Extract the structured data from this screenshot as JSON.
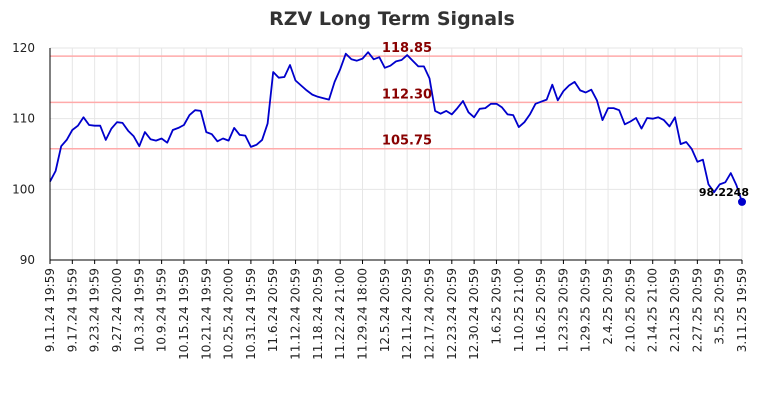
{
  "chart_data": {
    "type": "line",
    "title": "RZV Long Term Signals",
    "xlabel": "",
    "ylabel": "",
    "ylim": [
      90,
      120
    ],
    "yticks": [
      90,
      100,
      110,
      120
    ],
    "grid": true,
    "xtick_labels": [
      "9.11.24 19:59",
      "9.17.24 19:59",
      "9.23.24 19:59",
      "9.27.24 20:00",
      "10.3.24 19:59",
      "10.9.24 19:59",
      "10.15.24 19:59",
      "10.21.24 19:59",
      "10.25.24 20:00",
      "10.31.24 19:59",
      "11.6.24 20:59",
      "11.12.24 20:59",
      "11.18.24 20:59",
      "11.22.24 21:00",
      "11.29.24 18:00",
      "12.5.24 20:59",
      "12.11.24 20:59",
      "12.17.24 20:59",
      "12.23.24 20:59",
      "12.30.24 20:59",
      "1.6.25 20:59",
      "1.10.25 21:00",
      "1.16.25 20:59",
      "1.23.25 20:59",
      "1.29.25 20:59",
      "2.4.25 20:59",
      "2.10.25 20:59",
      "2.14.25 21:00",
      "2.21.25 20:59",
      "2.27.25 20:59",
      "3.5.25 20:59",
      "3.11.25 19:59"
    ],
    "series": [
      {
        "values": [
          101.1,
          102.6,
          106.1,
          107.0,
          108.4,
          109.0,
          110.2,
          109.1,
          109.0,
          109.0,
          107.0,
          108.6,
          109.5,
          109.4,
          108.3,
          107.5,
          106.1,
          108.1,
          107.1,
          106.9,
          107.2,
          106.6,
          108.4,
          108.7,
          109.1,
          110.5,
          111.2,
          111.1,
          108.1,
          107.8,
          106.8,
          107.2,
          106.9,
          108.7,
          107.7,
          107.6,
          106.0,
          106.3,
          107.0,
          109.3,
          116.6,
          115.8,
          115.9,
          117.6,
          115.4,
          114.7,
          114.0,
          113.4,
          113.1,
          112.9,
          112.7,
          115.2,
          117.0,
          119.2,
          118.4,
          118.2,
          118.5,
          119.4,
          118.4,
          118.7,
          117.2,
          117.5,
          118.1,
          118.3,
          119.0,
          118.2,
          117.4,
          117.4,
          115.7,
          111.1,
          110.7,
          111.1,
          110.6,
          111.5,
          112.5,
          110.9,
          110.2,
          111.4,
          111.5,
          112.1,
          112.1,
          111.6,
          110.6,
          110.5,
          108.8,
          109.5,
          110.6,
          112.1,
          112.4,
          112.7,
          114.8,
          112.6,
          113.9,
          114.7,
          115.2,
          114.0,
          113.7,
          114.1,
          112.6,
          109.8,
          111.5,
          111.5,
          111.2,
          109.2,
          109.6,
          110.1,
          108.6,
          110.1,
          110.0,
          110.2,
          109.8,
          108.9,
          110.2,
          106.4,
          106.7,
          105.7,
          103.9,
          104.2,
          100.7,
          99.6,
          100.7,
          101.0,
          102.3,
          100.6,
          98.2248
        ]
      }
    ],
    "levels": [
      {
        "value": 118.85,
        "label": "118.85"
      },
      {
        "value": 112.3,
        "label": "112.30"
      },
      {
        "value": 105.75,
        "label": "105.75"
      }
    ],
    "last_value_label": "98.2248",
    "colors": {
      "line": "#0000cc",
      "level": "#ffaaaa",
      "level_label": "#880000",
      "grid": "#e6e6e6",
      "axis": "#000000",
      "title": "#333333"
    }
  }
}
